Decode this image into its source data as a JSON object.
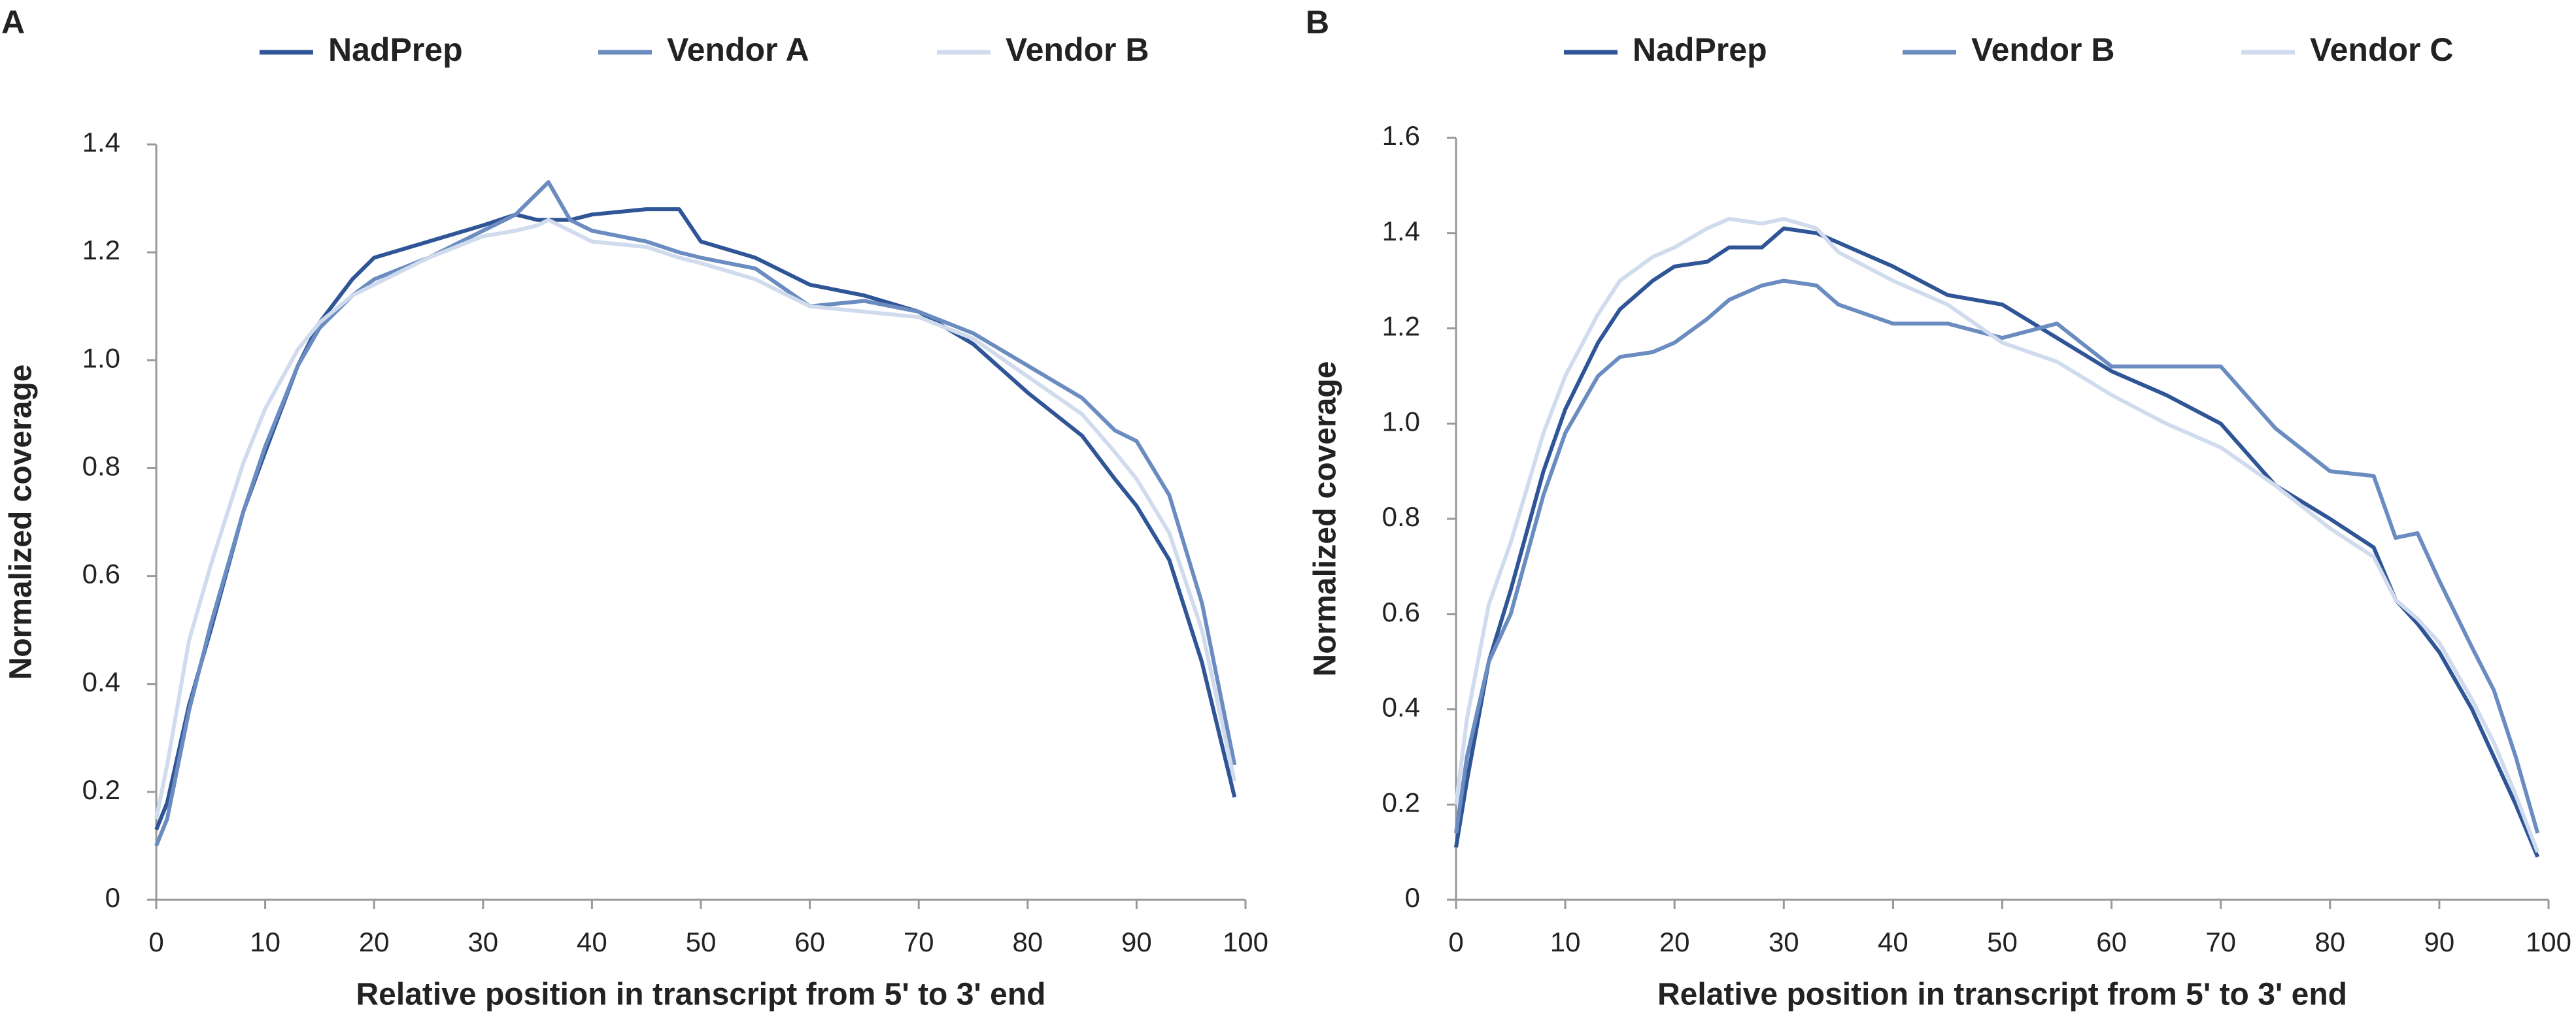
{
  "chart_data": [
    {
      "type": "line",
      "panel_label": "A",
      "xlabel": "Relative position in transcript from 5' to 3' end",
      "ylabel": "Normalized coverage",
      "x": [
        0,
        1,
        3,
        5,
        8,
        10,
        13,
        15,
        18,
        20,
        25,
        30,
        33,
        35,
        36,
        38,
        40,
        45,
        48,
        50,
        55,
        60,
        65,
        70,
        75,
        80,
        85,
        88,
        90,
        93,
        96,
        99
      ],
      "series": [
        {
          "name": "NadPrep",
          "color": "#2f5597",
          "values": [
            0.13,
            0.18,
            0.36,
            0.5,
            0.72,
            0.83,
            0.99,
            1.07,
            1.15,
            1.19,
            1.22,
            1.25,
            1.27,
            1.26,
            1.26,
            1.26,
            1.27,
            1.28,
            1.28,
            1.22,
            1.19,
            1.14,
            1.12,
            1.09,
            1.03,
            0.94,
            0.86,
            0.78,
            0.73,
            0.63,
            0.44,
            0.19
          ]
        },
        {
          "name": "Vendor A",
          "color": "#6a8cc0",
          "values": [
            0.1,
            0.15,
            0.35,
            0.51,
            0.72,
            0.84,
            0.99,
            1.06,
            1.12,
            1.15,
            1.19,
            1.24,
            1.27,
            1.31,
            1.33,
            1.26,
            1.24,
            1.22,
            1.2,
            1.19,
            1.17,
            1.1,
            1.11,
            1.09,
            1.05,
            0.99,
            0.93,
            0.87,
            0.85,
            0.75,
            0.55,
            0.25
          ]
        },
        {
          "name": "Vendor B",
          "color": "#d0dbed",
          "values": [
            0.15,
            0.25,
            0.48,
            0.62,
            0.81,
            0.91,
            1.02,
            1.07,
            1.12,
            1.14,
            1.19,
            1.23,
            1.24,
            1.25,
            1.26,
            1.24,
            1.22,
            1.21,
            1.19,
            1.18,
            1.15,
            1.1,
            1.09,
            1.08,
            1.04,
            0.97,
            0.9,
            0.83,
            0.78,
            0.68,
            0.5,
            0.22
          ]
        }
      ],
      "xlim": [
        0,
        100
      ],
      "xticks": [
        0,
        10,
        20,
        30,
        40,
        50,
        60,
        70,
        80,
        90,
        100
      ],
      "ylim": [
        0,
        1.4
      ],
      "yticks": [
        0,
        0.2,
        0.4,
        0.6,
        0.8,
        {
          "value": 1,
          "label": "1.0"
        },
        1.2,
        1.4
      ],
      "grid": false,
      "legend": "top"
    },
    {
      "type": "line",
      "panel_label": "B",
      "xlabel": "Relative position in transcript from 5' to 3' end",
      "ylabel": "Normalized coverage",
      "x": [
        0,
        1,
        3,
        5,
        8,
        10,
        13,
        15,
        18,
        20,
        23,
        25,
        28,
        30,
        33,
        35,
        40,
        45,
        50,
        55,
        60,
        65,
        70,
        75,
        80,
        84,
        86,
        88,
        90,
        93,
        95,
        97,
        99
      ],
      "series": [
        {
          "name": "NadPrep",
          "color": "#2f5597",
          "values": [
            0.11,
            0.25,
            0.5,
            0.65,
            0.9,
            1.03,
            1.17,
            1.24,
            1.3,
            1.33,
            1.34,
            1.37,
            1.37,
            1.41,
            1.4,
            1.38,
            1.33,
            1.27,
            1.25,
            1.18,
            1.11,
            1.06,
            1.0,
            0.87,
            0.8,
            0.74,
            0.63,
            0.58,
            0.52,
            0.4,
            0.3,
            0.2,
            0.09
          ]
        },
        {
          "name": "Vendor B",
          "color": "#6a8cc0",
          "values": [
            0.14,
            0.3,
            0.5,
            0.6,
            0.85,
            0.98,
            1.1,
            1.14,
            1.15,
            1.17,
            1.22,
            1.26,
            1.29,
            1.3,
            1.29,
            1.25,
            1.21,
            1.21,
            1.18,
            1.21,
            1.12,
            1.12,
            1.12,
            0.99,
            0.9,
            0.89,
            0.76,
            0.77,
            0.67,
            0.53,
            0.44,
            0.3,
            0.14
          ]
        },
        {
          "name": "Vendor C",
          "color": "#d0dbed",
          "values": [
            0.2,
            0.38,
            0.62,
            0.75,
            0.98,
            1.1,
            1.23,
            1.3,
            1.35,
            1.37,
            1.41,
            1.43,
            1.42,
            1.43,
            1.41,
            1.36,
            1.3,
            1.25,
            1.17,
            1.13,
            1.06,
            1.0,
            0.95,
            0.87,
            0.78,
            0.72,
            0.63,
            0.59,
            0.54,
            0.42,
            0.33,
            0.22,
            0.1
          ]
        }
      ],
      "xlim": [
        0,
        100
      ],
      "xticks": [
        0,
        10,
        20,
        30,
        40,
        50,
        60,
        70,
        80,
        90,
        100
      ],
      "ylim": [
        0,
        1.6
      ],
      "yticks": [
        0,
        0.2,
        0.4,
        0.6,
        0.8,
        {
          "value": 1,
          "label": "1.0"
        },
        1.2,
        1.4,
        1.6
      ],
      "grid": false,
      "legend": "top"
    }
  ]
}
